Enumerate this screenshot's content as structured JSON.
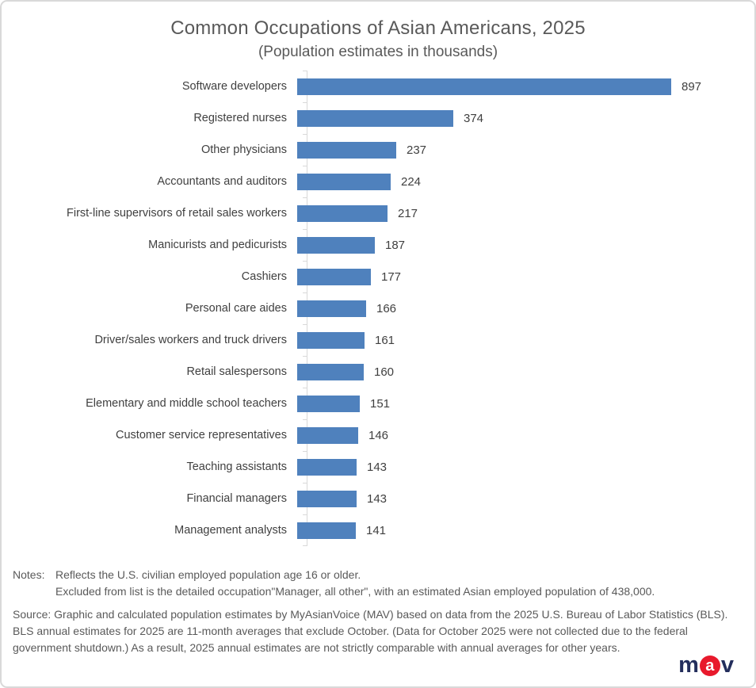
{
  "title": "Common Occupations of Asian Americans, 2025",
  "subtitle": "(Population estimates in thousands)",
  "chart_data": {
    "type": "bar",
    "orientation": "horizontal",
    "title": "Common Occupations of Asian Americans, 2025",
    "subtitle": "(Population estimates in thousands)",
    "categories": [
      "Software developers",
      "Registered nurses",
      "Other physicians",
      "Accountants and auditors",
      "First-line supervisors of retail sales workers",
      "Manicurists and pedicurists",
      "Cashiers",
      "Personal care aides",
      "Driver/sales workers and truck drivers",
      "Retail salespersons",
      "Elementary and middle school teachers",
      "Customer service representatives",
      "Teaching assistants",
      "Financial managers",
      "Management analysts"
    ],
    "values": [
      897,
      374,
      237,
      224,
      217,
      187,
      177,
      166,
      161,
      160,
      151,
      146,
      143,
      143,
      141
    ],
    "value_labels_shown": true,
    "xlabel": "",
    "ylabel": "",
    "xlim": [
      0,
      1040
    ],
    "grid": false,
    "legend": "none",
    "bar_color": "#4f81bd",
    "axis_color": "#d9d9d9",
    "label_color": "#404040"
  },
  "notes": {
    "label": "Notes:",
    "lines": [
      "Reflects the U.S. civilian employed population age 16 or older.",
      "Excluded from list is the detailed occupation\"Manager, all other\", with an estimated Asian employed population of 438,000."
    ]
  },
  "source": {
    "text": "Source: Graphic and calculated population estimates by MyAsianVoice (MAV) based on data from the 2025 U.S. Bureau of Labor Statistics (BLS). BLS annual estimates for 2025 are 11-month averages that exclude October. (Data for October 2025 were not collected due to the federal government shutdown.)  As a result, 2025 annual estimates are not strictly comparable with annual averages for other years."
  },
  "logo": {
    "m": "m",
    "a": "a",
    "v": "v",
    "navy_color": "#232e5c",
    "red_color": "#e8192c"
  },
  "colors": {
    "bar": "#4f81bd",
    "title_text": "#595959",
    "category_text": "#404040",
    "notes_text": "#595959",
    "axis": "#d9d9d9",
    "frame_border": "#d9d9d9"
  }
}
